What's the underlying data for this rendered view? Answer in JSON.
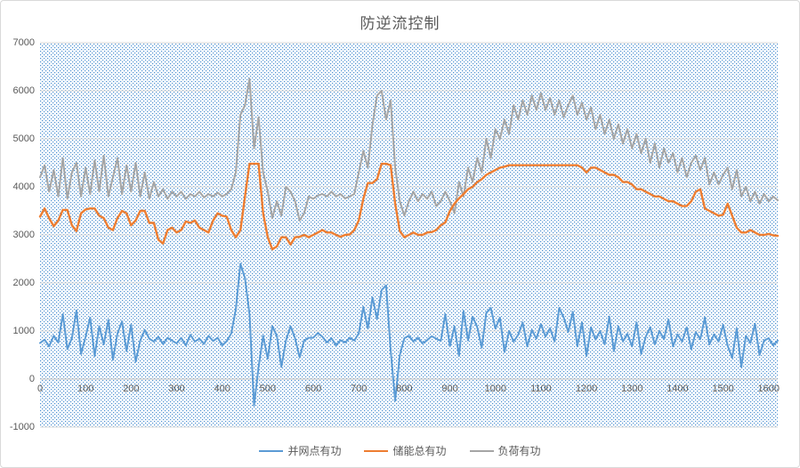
{
  "window": {
    "background": "#ffffff",
    "border_color": "#d9d9d9"
  },
  "chart_data": {
    "type": "line",
    "title": "防逆流控制",
    "legend_position": "bottom",
    "grid": "horizontal",
    "plot_background_pattern": "blue-dot-grid",
    "pattern_dot_color": "#4a8fd0",
    "gridline_color": "#d9d9d9",
    "zero_axis_color": "#bfbfbf",
    "text_color": "#595959",
    "x_axis": {
      "min": 0,
      "max": 1620,
      "tick_interval": 100,
      "tick_labels": [
        "0",
        "100",
        "200",
        "300",
        "400",
        "500",
        "600",
        "700",
        "800",
        "900",
        "1000",
        "1100",
        "1200",
        "1300",
        "1400",
        "1500",
        "1600"
      ]
    },
    "y_axis": {
      "min": -1000,
      "max": 7000,
      "tick_interval": 1000,
      "tick_labels": [
        "7000",
        "6000",
        "5000",
        "4000",
        "3000",
        "2000",
        "1000",
        "0",
        "-1000"
      ]
    },
    "x_start": 0,
    "x_step": 10,
    "series": [
      {
        "name": "并网点有功",
        "color": "#5B9BD5",
        "values": [
          750,
          820,
          680,
          900,
          760,
          1350,
          620,
          850,
          1430,
          520,
          880,
          1280,
          480,
          1100,
          720,
          1230,
          400,
          950,
          1200,
          580,
          1130,
          360,
          800,
          1020,
          840,
          780,
          880,
          730,
          860,
          800,
          740,
          860,
          700,
          920,
          780,
          840,
          730,
          900,
          790,
          860,
          700,
          790,
          950,
          1450,
          2400,
          2100,
          1350,
          -550,
          250,
          900,
          420,
          1100,
          900,
          250,
          800,
          1100,
          850,
          450,
          800,
          860,
          860,
          960,
          880,
          760,
          850,
          700,
          810,
          760,
          860,
          800,
          950,
          1500,
          1050,
          1700,
          1250,
          1850,
          1950,
          600,
          -450,
          500,
          850,
          900,
          780,
          860,
          740,
          810,
          890,
          840,
          790,
          1350,
          680,
          1100,
          480,
          1420,
          800,
          1300,
          1080,
          650,
          1380,
          1480,
          1050,
          1280,
          560,
          1000,
          780,
          920,
          1180,
          680,
          1020,
          840,
          1140,
          880,
          1060,
          780,
          1480,
          1280,
          980,
          1400,
          680,
          1180,
          480,
          1080,
          820,
          1000,
          720,
          1300,
          580,
          1100,
          780,
          940,
          680,
          1180,
          520,
          880,
          1080,
          720,
          1000,
          830,
          1240,
          680,
          930,
          780,
          1080,
          620,
          980,
          830,
          1280,
          720,
          930,
          780,
          1130,
          690,
          440,
          1050,
          250,
          900,
          750,
          1150,
          500,
          800,
          850,
          700,
          800
        ]
      },
      {
        "name": "储能总有功",
        "color": "#ED7D31",
        "values": [
          3380,
          3550,
          3350,
          3180,
          3300,
          3520,
          3520,
          3200,
          3080,
          3450,
          3530,
          3550,
          3550,
          3400,
          3350,
          3150,
          3100,
          3350,
          3500,
          3450,
          3200,
          3300,
          3500,
          3500,
          3250,
          3250,
          2900,
          2820,
          3100,
          3150,
          3050,
          3100,
          3280,
          3250,
          3300,
          3150,
          3100,
          3050,
          3300,
          3450,
          3400,
          3380,
          3100,
          2950,
          3100,
          3800,
          4480,
          4480,
          4480,
          3450,
          2950,
          2700,
          2760,
          2950,
          2950,
          2800,
          2950,
          2960,
          3000,
          2950,
          3000,
          3050,
          3100,
          3050,
          3050,
          3000,
          2960,
          3000,
          3010,
          3100,
          3300,
          3750,
          4080,
          4080,
          4160,
          4480,
          4480,
          4450,
          3650,
          3080,
          2950,
          3000,
          3050,
          3000,
          3000,
          3050,
          3060,
          3100,
          3200,
          3260,
          3500,
          3650,
          3760,
          3850,
          3950,
          4000,
          4100,
          4160,
          4250,
          4300,
          4350,
          4400,
          4420,
          4450,
          4450,
          4450,
          4450,
          4450,
          4450,
          4450,
          4450,
          4450,
          4450,
          4450,
          4450,
          4450,
          4450,
          4450,
          4450,
          4400,
          4300,
          4400,
          4400,
          4350,
          4300,
          4250,
          4250,
          4200,
          4100,
          4100,
          4050,
          3950,
          3950,
          3900,
          3850,
          3800,
          3800,
          3750,
          3700,
          3700,
          3650,
          3600,
          3600,
          3700,
          3900,
          3950,
          3550,
          3500,
          3450,
          3400,
          3420,
          3650,
          3400,
          3150,
          3050,
          3050,
          3100,
          3050,
          3000,
          3000,
          3020,
          2990,
          2980
        ]
      },
      {
        "name": "负荷有功",
        "color": "#A5A5A5",
        "values": [
          4200,
          4450,
          3900,
          4350,
          3800,
          4600,
          3750,
          4300,
          4500,
          3800,
          4400,
          3850,
          4550,
          3900,
          4650,
          3800,
          4200,
          4600,
          3850,
          4450,
          3900,
          4500,
          3800,
          4300,
          3750,
          4100,
          3800,
          3950,
          3750,
          3900,
          3800,
          3900,
          3750,
          3850,
          3800,
          3900,
          3780,
          3850,
          3800,
          3880,
          3800,
          3850,
          3950,
          4300,
          5500,
          5700,
          6250,
          4800,
          5450,
          4300,
          3900,
          3350,
          3700,
          3400,
          4000,
          3900,
          3700,
          3300,
          3450,
          3800,
          3750,
          3820,
          3850,
          3800,
          3900,
          3800,
          3850,
          3760,
          3800,
          3850,
          4300,
          4750,
          4400,
          5300,
          5900,
          6000,
          5400,
          5800,
          4400,
          3700,
          3400,
          3700,
          3900,
          3700,
          3850,
          3750,
          3900,
          3600,
          3700,
          3900,
          3700,
          3450,
          4100,
          3800,
          4400,
          4100,
          4600,
          4300,
          5000,
          4600,
          5200,
          5000,
          5400,
          5100,
          5700,
          5400,
          5800,
          5500,
          5900,
          5600,
          5950,
          5600,
          5850,
          5500,
          5800,
          5450,
          5700,
          5900,
          5500,
          5750,
          5400,
          5650,
          5200,
          5500,
          5100,
          5400,
          5000,
          5300,
          4900,
          5200,
          4800,
          5100,
          4700,
          5000,
          4500,
          4900,
          4400,
          4800,
          4500,
          4700,
          4300,
          4600,
          4200,
          4500,
          4650,
          4350,
          4600,
          4050,
          4300,
          4050,
          4250,
          4400,
          3950,
          4350,
          3800,
          4000,
          3700,
          3900,
          3650,
          3850,
          3700,
          3800,
          3720
        ]
      }
    ]
  }
}
